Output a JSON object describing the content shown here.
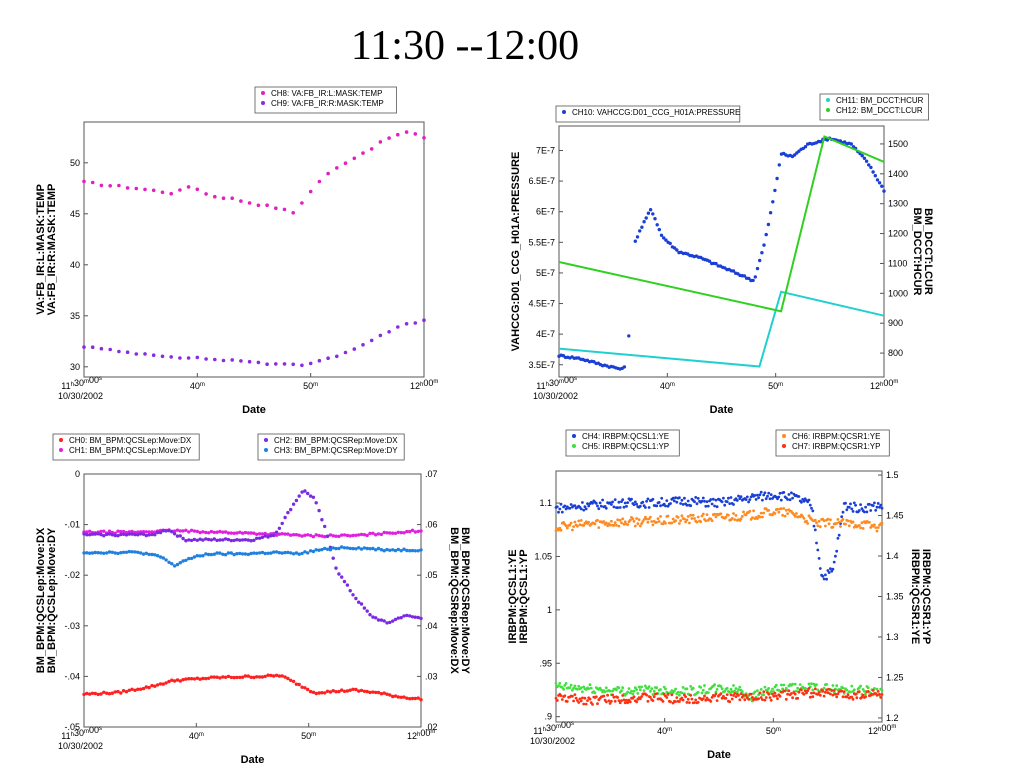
{
  "slide": {
    "title": "11:30 --12:00"
  },
  "chart_data": [
    {
      "type": "scatter",
      "panel": "top-left",
      "xlabel": "Date",
      "x_ticks": [
        "11h30m00s",
        "40m",
        "50m",
        "12h00m"
      ],
      "x_origin_date": "10/30/2002",
      "ylabel_left": [
        "VA:FB_IR:L:MASK:TEMP",
        "VA:FB_IR:R:MASK:TEMP"
      ],
      "y_left_ticks": [
        "30",
        "35",
        "40",
        "45",
        "50"
      ],
      "ylim_left": [
        29,
        54
      ],
      "legend": [
        {
          "label": "CH8: VA:FB_IR:L:MASK:TEMP",
          "color": "#e020c0"
        },
        {
          "label": "CH9: VA:FB_IR:R:MASK:TEMP",
          "color": "#8a2be2"
        }
      ],
      "series": [
        {
          "name": "CH8: VA:FB_IR:L:MASK:TEMP",
          "color": "#e020c0",
          "axis": "left",
          "kind": "dots",
          "points": [
            [
              0,
              48.1
            ],
            [
              2,
              47.8
            ],
            [
              4,
              47.6
            ],
            [
              6,
              47.3
            ],
            [
              8,
              47.0
            ],
            [
              9.5,
              47.8
            ],
            [
              11,
              46.8
            ],
            [
              13,
              46.5
            ],
            [
              15,
              46.0
            ],
            [
              17,
              45.6
            ],
            [
              18.5,
              45.1
            ],
            [
              19.5,
              46.5
            ],
            [
              21,
              48.5
            ],
            [
              23,
              50.0
            ],
            [
              25,
              51.2
            ],
            [
              27,
              52.5
            ],
            [
              28.5,
              53.0
            ],
            [
              30,
              52.5
            ]
          ]
        },
        {
          "name": "CH9: VA:FB_IR:R:MASK:TEMP",
          "color": "#8a2be2",
          "axis": "left",
          "kind": "dots",
          "points": [
            [
              0,
              32.0
            ],
            [
              3,
              31.5
            ],
            [
              6,
              31.2
            ],
            [
              9,
              30.9
            ],
            [
              12,
              30.7
            ],
            [
              15,
              30.5
            ],
            [
              17,
              30.2
            ],
            [
              19,
              30.2
            ],
            [
              20,
              30.3
            ],
            [
              22,
              31.0
            ],
            [
              24,
              31.8
            ],
            [
              26,
              33.0
            ],
            [
              28,
              34.0
            ],
            [
              30,
              34.6
            ]
          ]
        }
      ]
    },
    {
      "type": "scatter",
      "panel": "top-right",
      "xlabel": "Date",
      "x_ticks": [
        "11h30m00s",
        "40m",
        "50m",
        "12h00m"
      ],
      "x_origin_date": "10/30/2002",
      "ylabel_left": [
        "VAHCCG:D01_CCG_H01A:PRESSURE"
      ],
      "ylabel_right": [
        "BM_DCCT:HCUR",
        "BM_DCCT:LCUR"
      ],
      "y_left_ticks": [
        "3.5E-7",
        "4E-7",
        "4.5E-7",
        "5E-7",
        "5.5E-7",
        "6E-7",
        "6.5E-7",
        "7E-7"
      ],
      "y_right_ticks": [
        "800",
        "900",
        "1000",
        "1100",
        "1200",
        "1300",
        "1400",
        "1500"
      ],
      "ylim_left": [
        3.3e-07,
        7.4e-07
      ],
      "ylim_right": [
        720,
        1560
      ],
      "legend": [
        {
          "label": "CH10: VAHCCG:D01_CCG_H01A:PRESSURE",
          "color": "#1a3fd6"
        },
        {
          "label": "CH11: BM_DCCT:HCUR",
          "color": "#20d0d0"
        },
        {
          "label": "CH12: BM_DCCT:LCUR",
          "color": "#30d020"
        }
      ],
      "series": [
        {
          "name": "CH10: VAHCCG:D01_CCG_H01A:PRESSURE",
          "color": "#1a3fd6",
          "axis": "left",
          "kind": "dots",
          "points": [
            [
              0,
              3.65e-07
            ],
            [
              2,
              3.6e-07
            ],
            [
              4,
              3.5e-07
            ],
            [
              6,
              3.42e-07
            ],
            [
              6.5,
              4.03e-07
            ],
            [
              7,
              5.5e-07
            ],
            [
              7.5,
              5.7e-07
            ],
            [
              8.5,
              6.05e-07
            ],
            [
              9.5,
              5.6e-07
            ],
            [
              11,
              5.35e-07
            ],
            [
              13,
              5.25e-07
            ],
            [
              15,
              5.1e-07
            ],
            [
              17,
              4.95e-07
            ],
            [
              18,
              4.87e-07
            ],
            [
              19,
              5.5e-07
            ],
            [
              20,
              6.4e-07
            ],
            [
              20.5,
              6.95e-07
            ],
            [
              21.5,
              6.9e-07
            ],
            [
              23,
              7.1e-07
            ],
            [
              25,
              7.2e-07
            ],
            [
              27,
              7.1e-07
            ],
            [
              28.5,
              6.8e-07
            ],
            [
              30,
              6.35e-07
            ]
          ]
        },
        {
          "name": "CH11: BM_DCCT:HCUR",
          "color": "#20d0d0",
          "axis": "right",
          "kind": "line",
          "points": [
            [
              0,
              815
            ],
            [
              18.5,
              755
            ],
            [
              20.5,
              1005
            ],
            [
              30,
              925
            ]
          ]
        },
        {
          "name": "CH12: BM_DCCT:LCUR",
          "color": "#30d020",
          "axis": "right",
          "kind": "line",
          "points": [
            [
              0,
              1105
            ],
            [
              20.5,
              940
            ],
            [
              24.5,
              1525
            ],
            [
              30,
              1440
            ]
          ]
        }
      ]
    },
    {
      "type": "scatter",
      "panel": "bottom-left",
      "xlabel": "Date",
      "x_ticks": [
        "11h30m00s",
        "40m",
        "50m",
        "12h00m"
      ],
      "x_origin_date": "10/30/2002",
      "ylabel_left": [
        "BM_BPM:QCSLep:Move:DX",
        "BM_BPM:QCSLep:Move:DY"
      ],
      "ylabel_right": [
        "BM_BPM:QCSRep:Move:DX",
        "BM_BPM:QCSRep:Move:DY"
      ],
      "y_left_ticks": [
        "-.05",
        "-.04",
        "-.03",
        "-.02",
        "-.01",
        "0"
      ],
      "y_right_ticks": [
        ".02",
        ".03",
        ".04",
        ".05",
        ".06",
        ".07"
      ],
      "ylim_left": [
        -0.05,
        0
      ],
      "ylim_right": [
        0.02,
        0.07
      ],
      "legend": [
        {
          "label": "CH0: BM_BPM:QCSLep:Move:DX",
          "color": "#ff2020"
        },
        {
          "label": "CH1: BM_BPM:QCSLep:Move:DY",
          "color": "#e020e0"
        },
        {
          "label": "CH2: BM_BPM:QCSRep:Move:DX",
          "color": "#7a2be2"
        },
        {
          "label": "CH3: BM_BPM:QCSRep:Move:DY",
          "color": "#2080e0"
        }
      ],
      "series": [
        {
          "name": "CH0: BM_BPM:QCSLep:Move:DX",
          "color": "#ff2020",
          "axis": "left",
          "kind": "dots",
          "points": [
            [
              0,
              -0.0435
            ],
            [
              3,
              -0.0432
            ],
            [
              6,
              -0.042
            ],
            [
              8,
              -0.0408
            ],
            [
              10,
              -0.0405
            ],
            [
              12,
              -0.0402
            ],
            [
              14,
              -0.0401
            ],
            [
              16,
              -0.04
            ],
            [
              17.5,
              -0.0398
            ],
            [
              19,
              -0.0415
            ],
            [
              20.5,
              -0.0432
            ],
            [
              22,
              -0.043
            ],
            [
              24,
              -0.0427
            ],
            [
              26,
              -0.0432
            ],
            [
              28,
              -0.044
            ],
            [
              30,
              -0.0445
            ]
          ]
        },
        {
          "name": "CH1: BM_BPM:QCSLep:Move:DY",
          "color": "#e020e0",
          "axis": "left",
          "kind": "dots",
          "points": [
            [
              0,
              -0.0115
            ],
            [
              4,
              -0.0115
            ],
            [
              8,
              -0.0112
            ],
            [
              12,
              -0.0115
            ],
            [
              16,
              -0.0118
            ],
            [
              20,
              -0.0122
            ],
            [
              24,
              -0.0122
            ],
            [
              28,
              -0.0115
            ],
            [
              30,
              -0.0112
            ]
          ]
        },
        {
          "name": "CH2: BM_BPM:QCSRep:Move:DX",
          "color": "#7a2be2",
          "axis": "right",
          "kind": "dots",
          "points": [
            [
              0,
              0.058
            ],
            [
              3,
              0.058
            ],
            [
              6,
              0.058
            ],
            [
              7.5,
              0.059
            ],
            [
              9,
              0.057
            ],
            [
              12,
              0.057
            ],
            [
              15,
              0.057
            ],
            [
              17,
              0.058
            ],
            [
              18.5,
              0.0635
            ],
            [
              19.5,
              0.0668
            ],
            [
              20.5,
              0.0652
            ],
            [
              21.5,
              0.059
            ],
            [
              22.5,
              0.051
            ],
            [
              24,
              0.046
            ],
            [
              25.5,
              0.042
            ],
            [
              27,
              0.0405
            ],
            [
              28.5,
              0.042
            ],
            [
              30,
              0.0415
            ]
          ]
        },
        {
          "name": "CH3: BM_BPM:QCSRep:Move:DY",
          "color": "#2080e0",
          "axis": "right",
          "kind": "dots",
          "points": [
            [
              0,
              0.0545
            ],
            [
              3,
              0.0545
            ],
            [
              5,
              0.0545
            ],
            [
              7,
              0.0535
            ],
            [
              8,
              0.0518
            ],
            [
              9,
              0.053
            ],
            [
              11,
              0.0542
            ],
            [
              14,
              0.0542
            ],
            [
              17,
              0.0545
            ],
            [
              19,
              0.0542
            ],
            [
              21,
              0.055
            ],
            [
              23,
              0.0555
            ],
            [
              25,
              0.0553
            ],
            [
              27,
              0.055
            ],
            [
              30,
              0.055
            ]
          ]
        }
      ]
    },
    {
      "type": "scatter",
      "panel": "bottom-right",
      "xlabel": "Date",
      "x_ticks": [
        "11h30m00s",
        "40m",
        "50m",
        "12h00m"
      ],
      "x_origin_date": "10/30/2002",
      "ylabel_left": [
        "IRBPM:QCSL1:YE",
        "IRBPM:QCSL1:YP"
      ],
      "ylabel_right": [
        "IRBPM:QCSR1:YE",
        "IRBPM:QCSR1:YP"
      ],
      "y_left_ticks": [
        ".9",
        ".95",
        "1",
        "1.05",
        "1.1"
      ],
      "y_right_ticks": [
        "1.2",
        "1.25",
        "1.3",
        "1.35",
        "1.4",
        "1.45",
        "1.5"
      ],
      "ylim_left": [
        0.895,
        1.13
      ],
      "ylim_right": [
        1.195,
        1.505
      ],
      "legend": [
        {
          "label": "CH4: IRBPM:QCSL1:YE",
          "color": "#1a3fd6"
        },
        {
          "label": "CH5: IRBPM:QCSL1:YP",
          "color": "#40e040"
        },
        {
          "label": "CH6: IRBPM:QCSR1:YE",
          "color": "#ff8a20"
        },
        {
          "label": "CH7: IRBPM:QCSR1:YP",
          "color": "#ff3010"
        }
      ],
      "series": [
        {
          "name": "CH4: IRBPM:QCSL1:YE",
          "color": "#1a3fd6",
          "axis": "left",
          "kind": "dots",
          "points": [
            [
              0,
              1.095
            ],
            [
              3,
              1.098
            ],
            [
              6,
              1.1
            ],
            [
              9,
              1.1
            ],
            [
              12,
              1.102
            ],
            [
              15,
              1.1
            ],
            [
              18,
              1.105
            ],
            [
              20,
              1.108
            ],
            [
              22,
              1.105
            ],
            [
              23.5,
              1.098
            ],
            [
              24.5,
              1.03
            ],
            [
              25.5,
              1.037
            ],
            [
              26.5,
              1.098
            ],
            [
              28,
              1.095
            ],
            [
              30,
              1.098
            ]
          ]
        },
        {
          "name": "CH5: IRBPM:QCSL1:YP",
          "color": "#40e040",
          "axis": "left",
          "kind": "dots",
          "points": [
            [
              0,
              0.928
            ],
            [
              3,
              0.926
            ],
            [
              6,
              0.924
            ],
            [
              9,
              0.925
            ],
            [
              12,
              0.924
            ],
            [
              15,
              0.926
            ],
            [
              17,
              0.925
            ],
            [
              18,
              0.918
            ],
            [
              19,
              0.924
            ],
            [
              21,
              0.926
            ],
            [
              24,
              0.927
            ],
            [
              27,
              0.925
            ],
            [
              30,
              0.924
            ]
          ]
        },
        {
          "name": "CH6: IRBPM:QCSR1:YE",
          "color": "#ff8a20",
          "axis": "right",
          "kind": "dots",
          "points": [
            [
              0,
              1.435
            ],
            [
              3,
              1.44
            ],
            [
              6,
              1.442
            ],
            [
              9,
              1.443
            ],
            [
              12,
              1.445
            ],
            [
              15,
              1.448
            ],
            [
              18,
              1.45
            ],
            [
              20,
              1.455
            ],
            [
              22,
              1.452
            ],
            [
              24,
              1.44
            ],
            [
              26,
              1.44
            ],
            [
              28,
              1.44
            ],
            [
              30,
              1.435
            ]
          ]
        },
        {
          "name": "CH7: IRBPM:QCSR1:YP",
          "color": "#ff3010",
          "axis": "right",
          "kind": "dots",
          "points": [
            [
              0,
              1.225
            ],
            [
              3,
              1.222
            ],
            [
              6,
              1.224
            ],
            [
              9,
              1.225
            ],
            [
              12,
              1.223
            ],
            [
              15,
              1.225
            ],
            [
              18,
              1.226
            ],
            [
              21,
              1.228
            ],
            [
              24,
              1.232
            ],
            [
              27,
              1.228
            ],
            [
              30,
              1.23
            ]
          ]
        }
      ]
    }
  ]
}
